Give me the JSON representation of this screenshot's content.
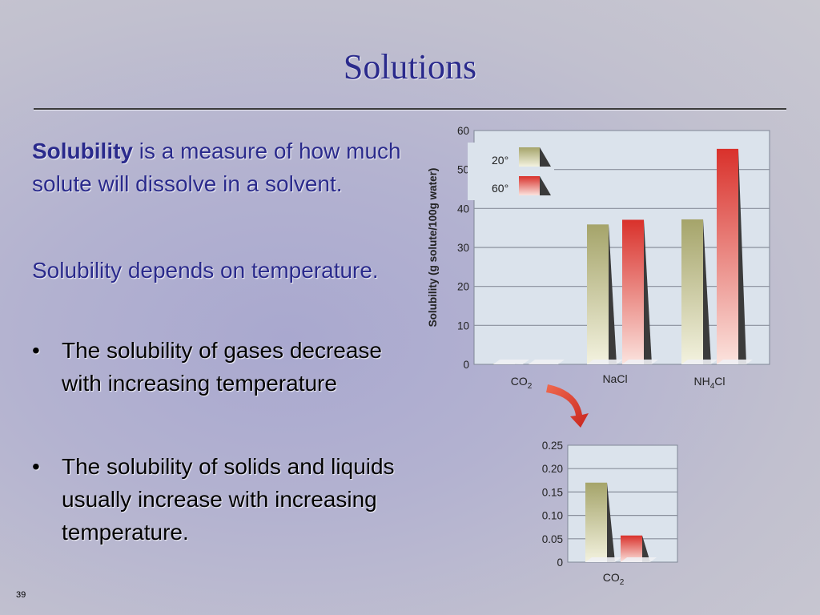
{
  "slide": {
    "title": "Solutions",
    "para1_bold": "Solubility",
    "para1_rest": " is a measure of how much solute will dissolve in a solvent.",
    "para2": "Solubility depends on temperature.",
    "bullets": [
      "The solubility of gases decrease with increasing temperature",
      "The solubility of solids and liquids usually increase with increasing temperature."
    ],
    "bullet_glyph": "•",
    "page_number": "39"
  },
  "colors": {
    "title": "#2a2a8c",
    "series_20": "#a5a46a",
    "series_60": "#d9312b",
    "plot_bg": "#dbe3ec"
  },
  "chart_data": [
    {
      "type": "bar",
      "ylabel": "Solubility (g solute/100g water)",
      "ylim": [
        0,
        60
      ],
      "yticks": [
        "0",
        "10",
        "20",
        "30",
        "40",
        "50",
        "60"
      ],
      "categories": [
        {
          "base": "CO",
          "sub": "2",
          "tail": ""
        },
        {
          "base": "NaCl",
          "sub": "",
          "tail": ""
        },
        {
          "base": "NH",
          "sub": "4",
          "tail": "Cl"
        }
      ],
      "legend": [
        "20°",
        "60°"
      ],
      "legend_position": "top-left",
      "grid": true,
      "series": [
        {
          "name": "20°",
          "values": [
            0.17,
            35.9,
            37.2
          ]
        },
        {
          "name": "60°",
          "values": [
            0.06,
            37.1,
            55.3
          ]
        }
      ]
    },
    {
      "type": "bar",
      "ylim": [
        0,
        0.25
      ],
      "yticks": [
        "0",
        "0.05",
        "0.10",
        "0.15",
        "0.20",
        "0.25"
      ],
      "categories": [
        {
          "base": "CO",
          "sub": "2",
          "tail": ""
        }
      ],
      "grid": true,
      "series": [
        {
          "name": "20°",
          "values": [
            0.17
          ]
        },
        {
          "name": "60°",
          "values": [
            0.057
          ]
        }
      ]
    }
  ]
}
